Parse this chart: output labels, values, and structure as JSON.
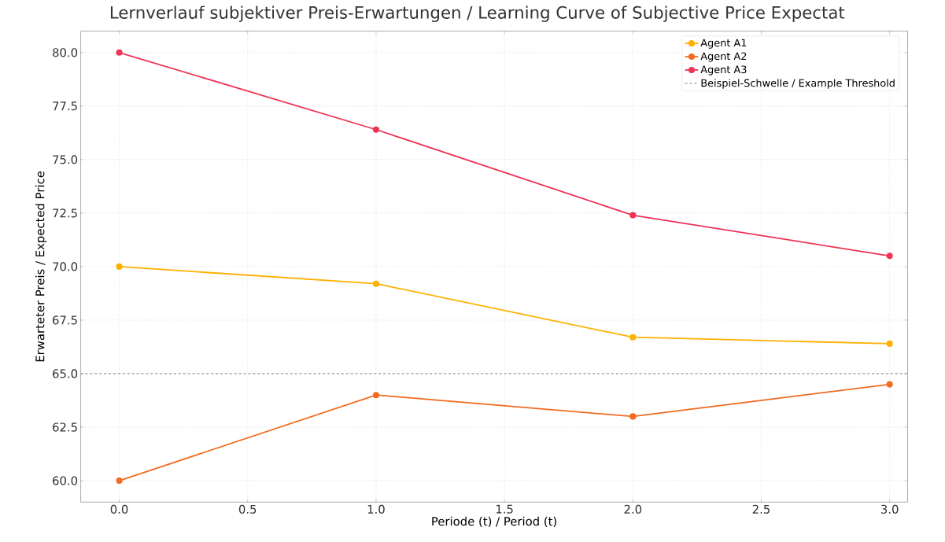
{
  "chart_data": {
    "type": "line",
    "title": "Lernverlauf subjektiver Preis-Erwartungen / Learning Curve of Subjective Price Expectat",
    "xlabel": "Periode (t) / Period (t)",
    "ylabel": "Erwarteter Preis / Expected Price",
    "x": [
      0,
      1,
      2,
      3
    ],
    "series": [
      {
        "name": "Agent A1",
        "color": "#ffb000",
        "values": [
          70.0,
          69.2,
          66.7,
          66.4
        ]
      },
      {
        "name": "Agent A2",
        "color": "#f26b21",
        "values": [
          60.0,
          64.0,
          63.0,
          64.5
        ]
      },
      {
        "name": "Agent A3",
        "color": "#ef3355",
        "values": [
          80.0,
          76.4,
          72.4,
          70.5
        ]
      }
    ],
    "ref_lines": [
      {
        "axis": "y",
        "value": 65,
        "label": "Beispiel-Schwelle / Example Threshold",
        "color": "#808080",
        "line_style": "dashed"
      }
    ],
    "xlim": [
      -0.15,
      3.07
    ],
    "ylim": [
      59.0,
      81.0
    ],
    "xticks": [
      {
        "value": 0,
        "label": "0.0"
      },
      {
        "value": 0.5,
        "label": "0.5"
      },
      {
        "value": 1,
        "label": "1.0"
      },
      {
        "value": 1.5,
        "label": "1.5"
      },
      {
        "value": 2,
        "label": "2.0"
      },
      {
        "value": 2.5,
        "label": "2.5"
      },
      {
        "value": 3,
        "label": "3.0"
      }
    ],
    "yticks": [
      {
        "value": 60,
        "label": "60.0"
      },
      {
        "value": 62.5,
        "label": "62.5"
      },
      {
        "value": 65,
        "label": "65.0"
      },
      {
        "value": 67.5,
        "label": "67.5"
      },
      {
        "value": 70,
        "label": "70.0"
      },
      {
        "value": 72.5,
        "label": "72.5"
      },
      {
        "value": 75,
        "label": "75.0"
      },
      {
        "value": 77.5,
        "label": "77.5"
      },
      {
        "value": 80,
        "label": "80.0"
      }
    ],
    "grid": true,
    "legend": "top right",
    "marker": "circle",
    "line_style": "solid"
  }
}
